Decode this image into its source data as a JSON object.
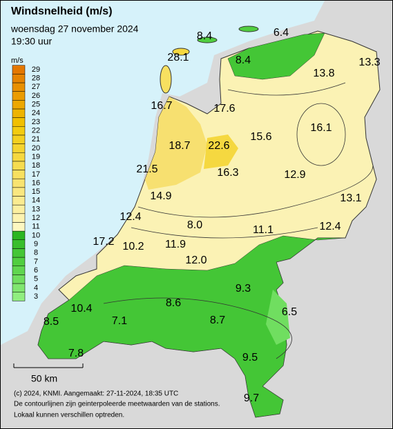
{
  "header": {
    "title": "Windsnelheid (m/s)",
    "subtitle": "woensdag 27 november 2024",
    "time": "19:30 uur"
  },
  "legend": {
    "unit": "m/s",
    "levels": [
      3,
      4,
      5,
      6,
      7,
      8,
      9,
      10,
      11,
      12,
      13,
      14,
      15,
      16,
      17,
      18,
      19,
      20,
      21,
      22,
      23,
      24,
      25,
      26,
      27,
      28,
      29
    ],
    "colors": [
      "#90ee80",
      "#80e670",
      "#70de60",
      "#60d650",
      "#50ce40",
      "#44c636",
      "#38be2c",
      "#2cb622",
      "#fdf7c0",
      "#fcf3b0",
      "#fbefa0",
      "#faeb90",
      "#f9e780",
      "#f8e370",
      "#f7e060",
      "#f6dc50",
      "#f5d840",
      "#f4d430",
      "#f3d020",
      "#f2cc10",
      "#f0c000",
      "#eeb400",
      "#eca800",
      "#ea9c00",
      "#e89000",
      "#e68400",
      "#e47800"
    ]
  },
  "stations": [
    "8.4",
    "6.4",
    "28.1",
    "8.4",
    "13.8",
    "13.3",
    "16.7",
    "17.6",
    "15.6",
    "16.1",
    "18.7",
    "22.6",
    "21.5",
    "16.3",
    "12.9",
    "13.1",
    "14.9",
    "12.4",
    "8.0",
    "11.1",
    "12.4",
    "17.2",
    "10.2",
    "11.9",
    "12.0",
    "9.3",
    "10.4",
    "8.6",
    "6.5",
    "8.5",
    "7.1",
    "8.7",
    "7.8",
    "9.5",
    "9.7"
  ],
  "scale_bar": "50 km",
  "footer": [
    "(c) 2024, KNMI. Aangemaakt: 27-11-2024, 18:35 UTC",
    "De contourlijnen zijn geinterpoleerde meetwaarden van de stations.",
    "Lokaal kunnen verschillen optreden."
  ]
}
